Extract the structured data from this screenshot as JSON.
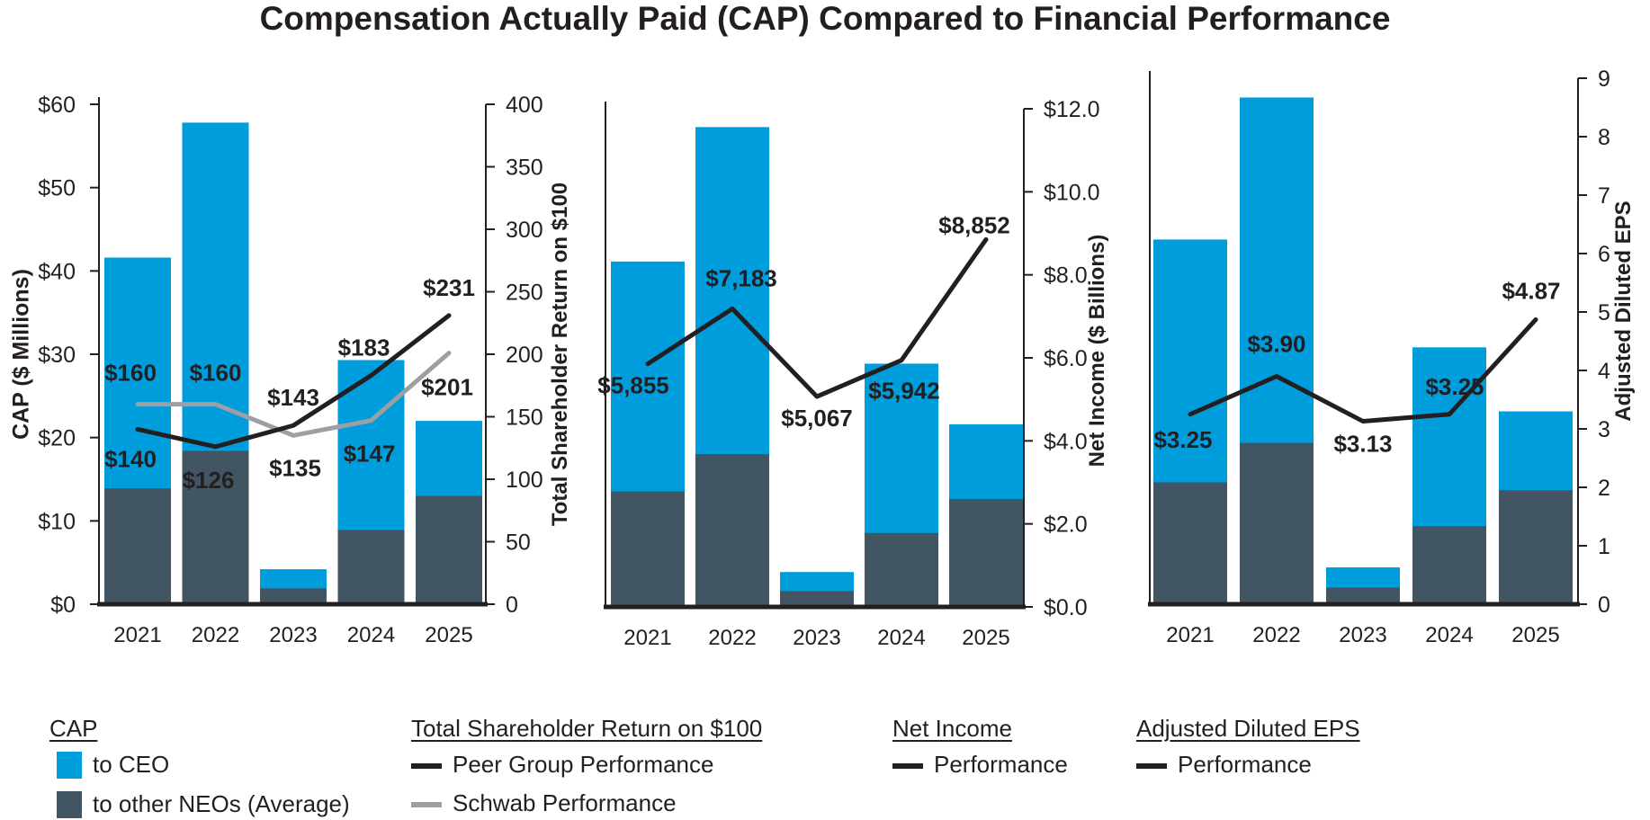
{
  "title": "Compensation Actually Paid (CAP) Compared to Financial Performance",
  "colors": {
    "ceo": "#009ddc",
    "neo": "#425563",
    "peer": "#231f20",
    "schwab": "#9d9fa2",
    "axis": "#231f20"
  },
  "chart_data": [
    {
      "type": "bar",
      "title": "",
      "categories": [
        "2021",
        "2022",
        "2023",
        "2024",
        "2025"
      ],
      "ylabel": "CAP ($ Millions)",
      "ylim": [
        0,
        60
      ],
      "yticks": [
        "$0",
        "$10",
        "$20",
        "$30",
        "$40",
        "$50",
        "$60"
      ],
      "ytick_values": [
        0,
        10,
        20,
        30,
        40,
        50,
        60
      ],
      "series": [
        {
          "name": "to CEO",
          "values": [
            41.6,
            57.8,
            4.2,
            29.3,
            22.0
          ]
        },
        {
          "name": "to other NEOs (Average)",
          "values": [
            13.9,
            18.4,
            1.9,
            8.9,
            13.0
          ]
        }
      ],
      "y2label": "Total Shareholder Return on $100",
      "y2lim": [
        0,
        400
      ],
      "y2ticks": [
        "0",
        "50",
        "100",
        "150",
        "200",
        "250",
        "300",
        "350",
        "400"
      ],
      "y2tick_values": [
        0,
        50,
        100,
        150,
        200,
        250,
        300,
        350,
        400
      ],
      "lines": [
        {
          "name": "Peer Group Performance",
          "values": [
            140,
            126,
            143,
            183,
            231
          ],
          "labels": [
            "$140",
            "$126",
            "$143",
            "$183",
            "$231"
          ]
        },
        {
          "name": "Schwab Performance",
          "values": [
            160,
            160,
            135,
            147,
            201
          ],
          "labels": [
            "$160",
            "$160",
            "$135",
            "$147",
            "$201"
          ]
        }
      ]
    },
    {
      "type": "bar",
      "title": "",
      "categories": [
        "2021",
        "2022",
        "2023",
        "2024",
        "2025"
      ],
      "ylabel": "",
      "ylim": [
        0,
        60
      ],
      "series": [
        {
          "name": "to CEO",
          "values": [
            41.6,
            57.8,
            4.2,
            29.3,
            22.0
          ]
        },
        {
          "name": "to other NEOs (Average)",
          "values": [
            13.9,
            18.4,
            1.9,
            8.9,
            13.0
          ]
        }
      ],
      "y2label": "Net Income ($ Billions)",
      "y2lim": [
        0,
        12
      ],
      "y2ticks": [
        "$0.0",
        "$2.0",
        "$4.0",
        "$6.0",
        "$8.0",
        "$10.0",
        "$12.0"
      ],
      "y2tick_values": [
        0,
        2,
        4,
        6,
        8,
        10,
        12
      ],
      "lines": [
        {
          "name": "Performance",
          "values": [
            5.855,
            7.183,
            5.067,
            5.942,
            8.852
          ],
          "labels": [
            "$5,855",
            "$7,183",
            "$5,067",
            "$5,942",
            "$8,852"
          ]
        }
      ]
    },
    {
      "type": "bar",
      "title": "",
      "categories": [
        "2021",
        "2022",
        "2023",
        "2024",
        "2025"
      ],
      "ylabel": "",
      "ylim": [
        0,
        60
      ],
      "series": [
        {
          "name": "to CEO",
          "values": [
            41.6,
            57.8,
            4.2,
            29.3,
            22.0
          ]
        },
        {
          "name": "to other NEOs (Average)",
          "values": [
            13.9,
            18.4,
            1.9,
            8.9,
            13.0
          ]
        }
      ],
      "y2label": "Adjusted Diluted EPS",
      "y2lim": [
        0,
        9
      ],
      "y2ticks": [
        "0",
        "1",
        "2",
        "3",
        "4",
        "5",
        "6",
        "7",
        "8",
        "9"
      ],
      "y2tick_values": [
        0,
        1,
        2,
        3,
        4,
        5,
        6,
        7,
        8,
        9
      ],
      "lines": [
        {
          "name": "Performance",
          "values": [
            3.25,
            3.9,
            3.13,
            3.25,
            4.87
          ],
          "labels": [
            "$3.25",
            "$3.90",
            "$3.13",
            "$3.25",
            "$4.87"
          ]
        }
      ]
    }
  ],
  "legend": {
    "cap": {
      "heading": "CAP",
      "ceo": "to CEO",
      "neo": "to other NEOs (Average)"
    },
    "tsr": {
      "heading": "Total Shareholder Return on $100",
      "peer": "Peer Group Performance",
      "schwab": "Schwab Performance"
    },
    "net_income": {
      "heading": "Net Income",
      "performance": "Performance"
    },
    "eps": {
      "heading": "Adjusted Diluted EPS",
      "performance": "Performance"
    }
  }
}
